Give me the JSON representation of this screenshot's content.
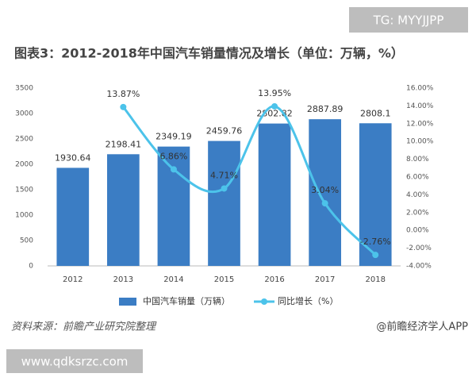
{
  "badges": [
    "TG: MYYJJPP",
    "www.qdksrzc.com"
  ],
  "chart_data": {
    "type": "bar",
    "title": "图表3：2012-2018年中国汽车销量情况及增长（单位：万辆，%）",
    "categories": [
      "2012",
      "2013",
      "2014",
      "2015",
      "2016",
      "2017",
      "2018"
    ],
    "series": [
      {
        "name": "中国汽车销量（万辆）",
        "type": "bar",
        "color": "#3b7dc4",
        "values": [
          1930.64,
          2198.41,
          2349.19,
          2459.76,
          2802.82,
          2887.89,
          2808.1
        ]
      },
      {
        "name": "同比增长（%）",
        "type": "line",
        "axis": "y2",
        "color": "#4cc3ea",
        "values": [
          null,
          13.87,
          6.86,
          4.71,
          13.95,
          3.04,
          -2.76
        ],
        "value_labels": [
          null,
          "13.87%",
          "6.86%",
          "4.71%",
          "13.95%",
          "3.04%",
          "-2.76%"
        ]
      }
    ],
    "ylim": [
      0,
      3500
    ],
    "yticks": [
      0,
      500,
      1000,
      1500,
      2000,
      2500,
      3000,
      3500
    ],
    "y2lim": [
      -4,
      16
    ],
    "y2ticks": [
      {
        "value": -4,
        "label": "-4.00%"
      },
      {
        "value": -2,
        "label": "-2.00%"
      },
      {
        "value": 0,
        "label": "0.00%"
      },
      {
        "value": 2,
        "label": "2.00%"
      },
      {
        "value": 4,
        "label": "4.00%"
      },
      {
        "value": 6,
        "label": "6.00%"
      },
      {
        "value": 8,
        "label": "8.00%"
      },
      {
        "value": 10,
        "label": "10.00%"
      },
      {
        "value": 12,
        "label": "12.00%"
      },
      {
        "value": 14,
        "label": "14.00%"
      },
      {
        "value": 16,
        "label": "16.00%"
      }
    ],
    "legend": "bottom",
    "source": "资料来源：前瞻产业研究院整理",
    "credit": "@前瞻经济学人APP"
  }
}
